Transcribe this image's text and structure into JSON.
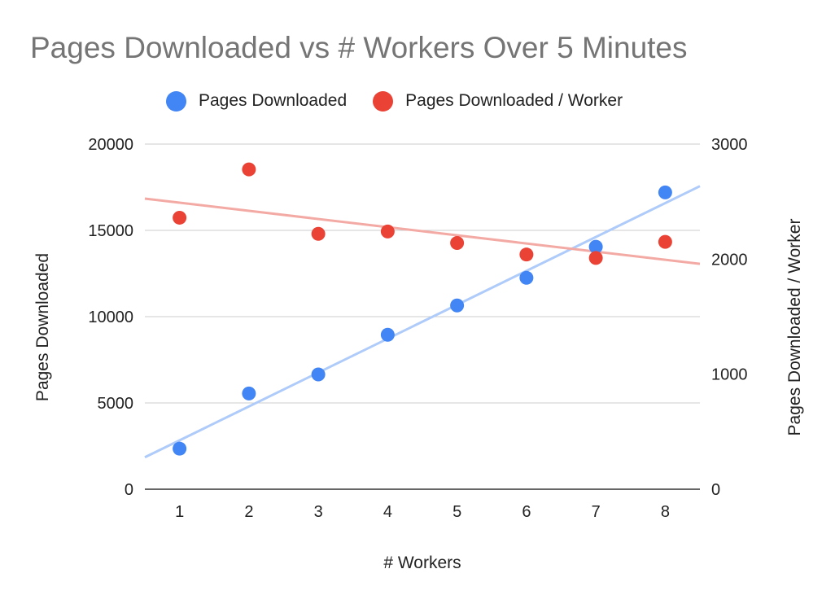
{
  "chart_data": {
    "type": "scatter",
    "title": "Pages Downloaded vs # Workers Over 5 Minutes",
    "xlabel": "# Workers",
    "ylabel": "Pages Downloaded",
    "y2label": "Pages Downloaded / Worker",
    "x": [
      1,
      2,
      3,
      4,
      5,
      6,
      7,
      8
    ],
    "xlim": [
      0.5,
      8.5
    ],
    "ylim": [
      0,
      20000
    ],
    "y2lim": [
      0,
      3000
    ],
    "x_ticks": [
      "1",
      "2",
      "3",
      "4",
      "5",
      "6",
      "7",
      "8"
    ],
    "y_ticks": [
      "0",
      "5000",
      "10000",
      "15000",
      "20000"
    ],
    "y2_ticks": [
      "0",
      "1000",
      "2000",
      "3000"
    ],
    "grid": true,
    "legend_position": "top",
    "series": [
      {
        "name": "Pages Downloaded",
        "axis": "left",
        "color": "#4285f4",
        "trendline_color": "#aecbfa",
        "values": [
          2350,
          5550,
          6650,
          8950,
          10650,
          12250,
          14050,
          17200
        ]
      },
      {
        "name": "Pages Downloaded / Worker",
        "axis": "right",
        "color": "#ea4335",
        "trendline_color": "#f4aaa4",
        "values": [
          2360,
          2780,
          2220,
          2240,
          2140,
          2040,
          2010,
          2150
        ]
      }
    ]
  }
}
